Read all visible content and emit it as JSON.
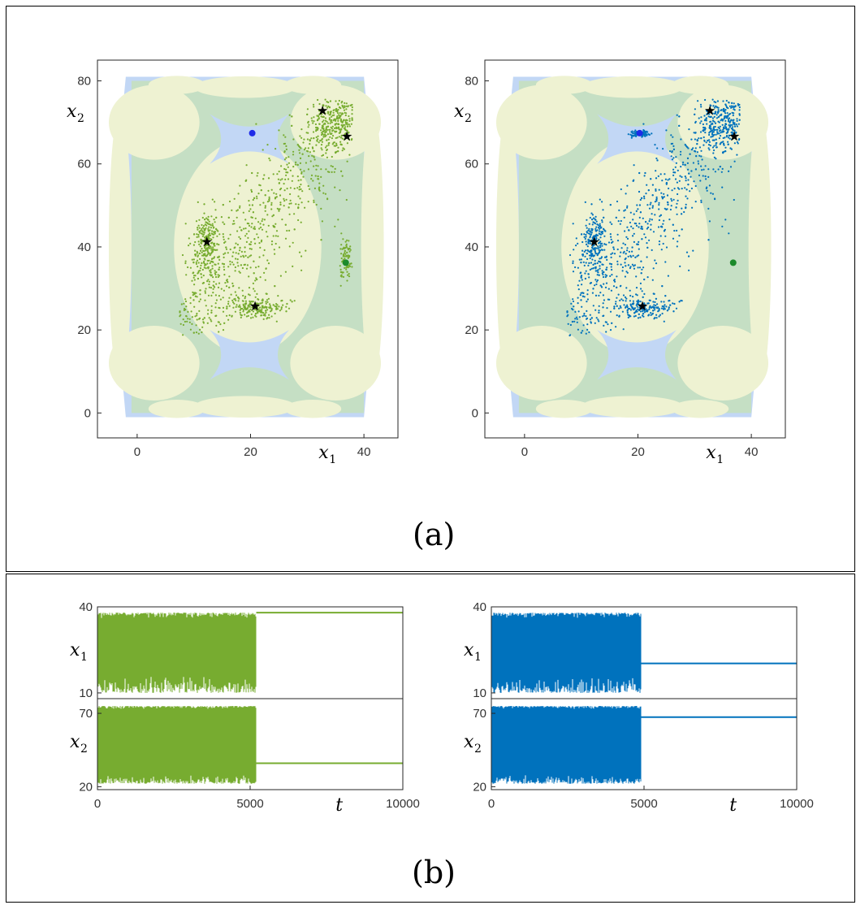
{
  "panels": {
    "a_label": "(a)",
    "b_label": "(b)"
  },
  "colors": {
    "green": "#77ac30",
    "blue": "#0072bd",
    "basin_yellow": "#eef2d2",
    "basin_green": "#c5dfc4",
    "basin_blue": "#c2d7f5",
    "star": "#000000",
    "fixed_blue": "#1f2be8",
    "fixed_green": "#1c8a2b"
  },
  "chart_data": [
    {
      "type": "scatter",
      "id": "phase-left",
      "color": "green",
      "xlabel": "x",
      "xlabel_sub": "1",
      "ylabel": "x",
      "ylabel_sub": "2",
      "xlim": [
        -7,
        46
      ],
      "ylim": [
        -6,
        85
      ],
      "xticks": [
        0,
        20,
        40
      ],
      "yticks": [
        0,
        20,
        40,
        60,
        80
      ],
      "stars": [
        [
          12.3,
          41.2
        ],
        [
          20.8,
          25.7
        ],
        [
          32.7,
          72.8
        ],
        [
          37.0,
          66.6
        ]
      ],
      "fixed_points": [
        {
          "x": 20.3,
          "y": 67.4,
          "color": "fixed_blue"
        },
        {
          "x": 36.8,
          "y": 36.2,
          "color": "fixed_green"
        }
      ],
      "cloud": "green-trajectory"
    },
    {
      "type": "scatter",
      "id": "phase-right",
      "color": "blue",
      "xlabel": "x",
      "xlabel_sub": "1",
      "ylabel": "x",
      "ylabel_sub": "2",
      "xlim": [
        -7,
        46
      ],
      "ylim": [
        -6,
        85
      ],
      "xticks": [
        0,
        20,
        40
      ],
      "yticks": [
        0,
        20,
        40,
        60,
        80
      ],
      "stars": [
        [
          12.3,
          41.2
        ],
        [
          20.8,
          25.7
        ],
        [
          32.7,
          72.8
        ],
        [
          37.0,
          66.6
        ]
      ],
      "fixed_points": [
        {
          "x": 20.3,
          "y": 67.4,
          "color": "fixed_blue"
        },
        {
          "x": 36.8,
          "y": 36.2,
          "color": "fixed_green"
        }
      ],
      "cloud": "blue-trajectory"
    },
    {
      "type": "line",
      "id": "ts-left",
      "color": "green",
      "xlabel": "t",
      "xlim": [
        0,
        10000
      ],
      "xticks": [
        0,
        5000,
        10000
      ],
      "switch_t": 5200,
      "top": {
        "ylabel": "x",
        "ylabel_sub": "1",
        "ylim": [
          8,
          40
        ],
        "yticks": [
          10,
          40
        ],
        "chaos_range": [
          10,
          38
        ],
        "settled": 38
      },
      "bottom": {
        "ylabel": "x",
        "ylabel_sub": "2",
        "ylim": [
          18,
          80
        ],
        "yticks": [
          20,
          70
        ],
        "chaos_range": [
          22,
          75
        ],
        "settled": 36
      }
    },
    {
      "type": "line",
      "id": "ts-right",
      "color": "blue",
      "xlabel": "t",
      "xlim": [
        0,
        10000
      ],
      "xticks": [
        0,
        5000,
        10000
      ],
      "switch_t": 4900,
      "top": {
        "ylabel": "x",
        "ylabel_sub": "1",
        "ylim": [
          8,
          40
        ],
        "yticks": [
          10,
          40
        ],
        "chaos_range": [
          10,
          38
        ],
        "settled": 20.3
      },
      "bottom": {
        "ylabel": "x",
        "ylabel_sub": "2",
        "ylim": [
          18,
          80
        ],
        "yticks": [
          20,
          70
        ],
        "chaos_range": [
          22,
          75
        ],
        "settled": 67.4
      }
    }
  ]
}
